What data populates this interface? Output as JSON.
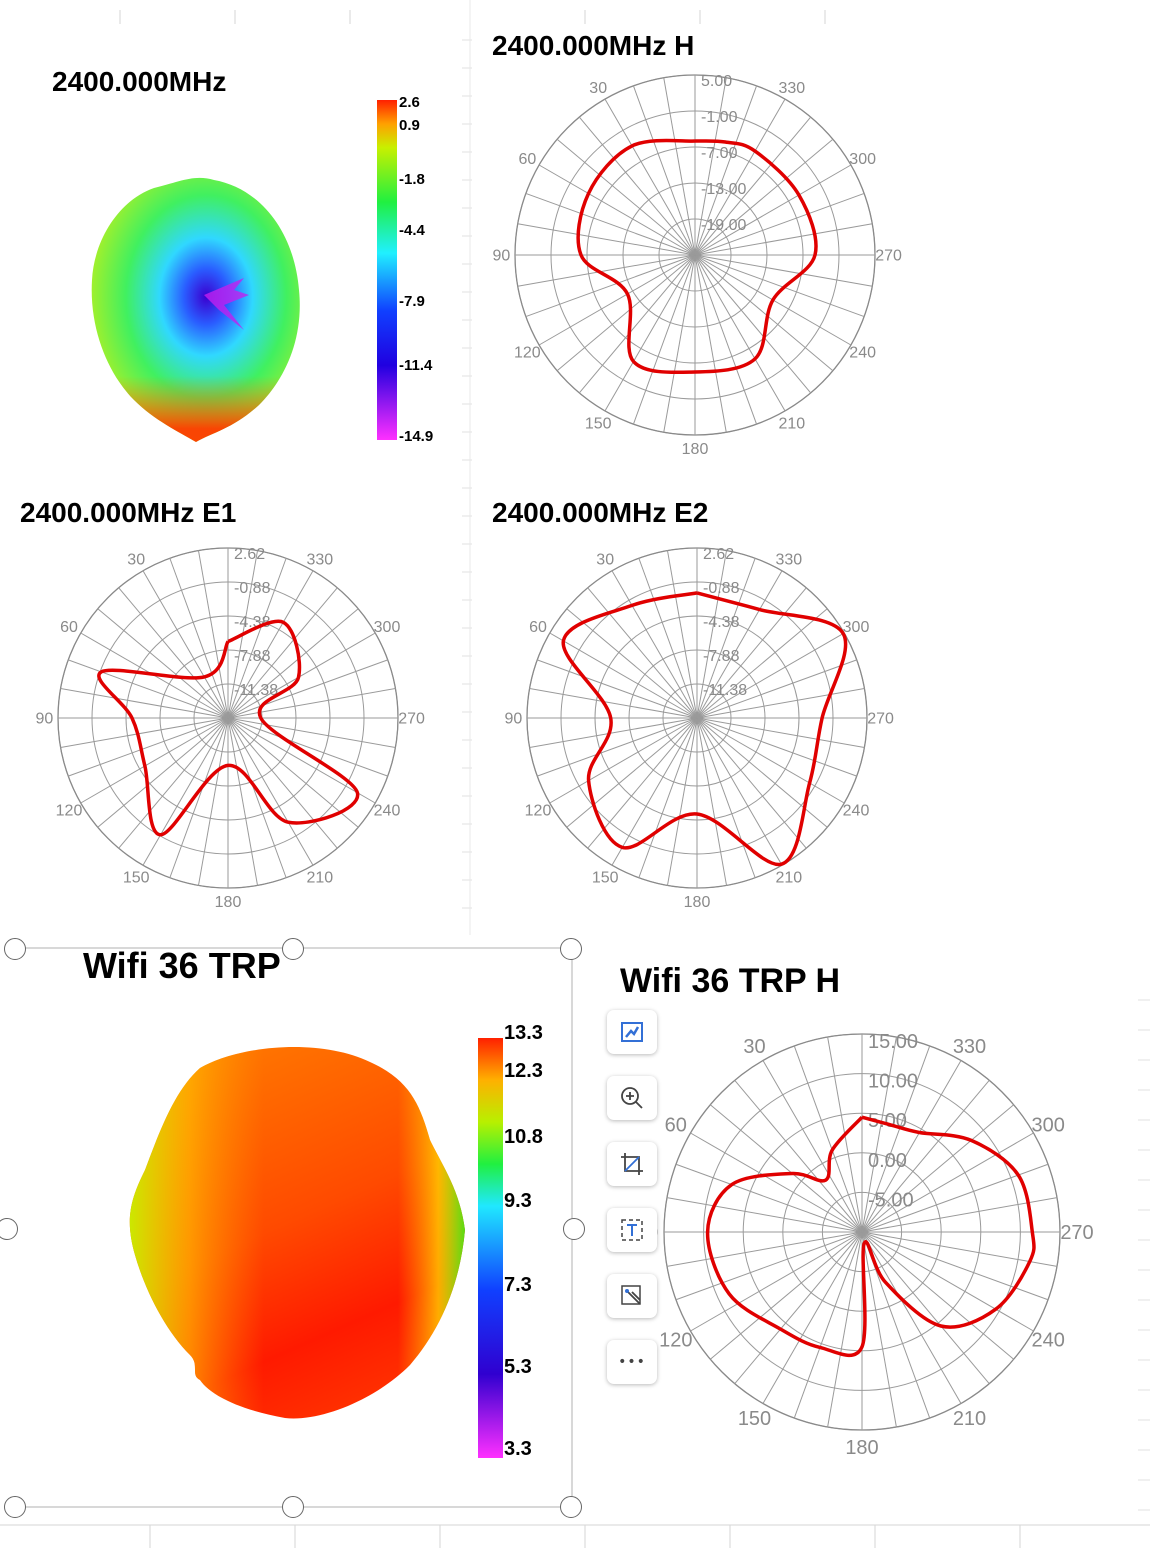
{
  "chart_data": [
    {
      "type": "3d-pattern",
      "title": "2400.000MHz",
      "colorbar": {
        "ticks": [
          "2.6",
          "0.9",
          "-1.8",
          "-4.4",
          "-7.9",
          "-11.4",
          "-14.9"
        ],
        "range": [
          -14.9,
          2.6
        ]
      }
    },
    {
      "type": "polar",
      "title": "2400.000MHz  H",
      "radial_ticks": [
        "5.00",
        "-1.00",
        "-7.00",
        "-13.00",
        "-19.00"
      ],
      "rlim": [
        -25,
        5
      ],
      "angle_ticks": [
        "330",
        "300",
        "270",
        "240",
        "210",
        "180",
        "150",
        "120",
        "90",
        "60",
        "30"
      ],
      "series": [
        {
          "color": "#e00000",
          "angles": [
            0,
            30,
            60,
            90,
            120,
            150,
            180,
            210,
            240,
            270,
            300,
            330,
            345,
            360
          ],
          "values": [
            -6.0,
            -4.0,
            -4.5,
            -6.0,
            -12.0,
            -4.5,
            -5.5,
            -5.0,
            -10.0,
            -5.0,
            -5.0,
            -5.0,
            -5.5,
            -6.0
          ]
        }
      ]
    },
    {
      "type": "polar",
      "title": "2400.000MHz  E1",
      "radial_ticks": [
        "2.62",
        "-0.88",
        "-4.38",
        "-7.88",
        "-11.38"
      ],
      "rlim": [
        -14.88,
        2.62
      ],
      "angle_ticks": [
        "330",
        "300",
        "270",
        "240",
        "210",
        "180",
        "150",
        "120",
        "90",
        "60",
        "30"
      ],
      "series": [
        {
          "color": "#e00000",
          "angles": [
            0,
            30,
            70,
            90,
            120,
            150,
            180,
            210,
            240,
            270,
            300,
            330,
            360
          ],
          "values": [
            -7.0,
            -10.0,
            -1.0,
            -5.0,
            -5.0,
            -1.0,
            -10.0,
            -2.5,
            0.5,
            -11.5,
            -6.5,
            -3.5,
            -7.0
          ]
        }
      ]
    },
    {
      "type": "polar",
      "title": "2400.000MHz  E2",
      "radial_ticks": [
        "2.62",
        "-0.88",
        "-4.38",
        "-7.88",
        "-11.38"
      ],
      "rlim": [
        -14.88,
        2.62
      ],
      "angle_ticks": [
        "330",
        "300",
        "270",
        "240",
        "210",
        "180",
        "150",
        "120",
        "90",
        "60",
        "30"
      ],
      "series": [
        {
          "color": "#e00000",
          "angles": [
            0,
            30,
            60,
            90,
            120,
            150,
            180,
            210,
            240,
            270,
            300,
            330,
            360
          ],
          "values": [
            -2.0,
            -1.5,
            1.0,
            -6.0,
            -2.0,
            0.5,
            -5.0,
            2.5,
            -1.5,
            -2.0,
            2.5,
            -2.0,
            -2.0
          ]
        }
      ]
    },
    {
      "type": "3d-pattern",
      "title": "Wifi 36 TRP",
      "colorbar": {
        "ticks": [
          "13.3",
          "12.3",
          "10.8",
          "9.3",
          "7.3",
          "5.3",
          "3.3"
        ],
        "range": [
          3.3,
          13.3
        ]
      }
    },
    {
      "type": "polar",
      "title": "Wifi 36 TRP H",
      "radial_ticks": [
        "15.00",
        "10.00",
        "5.00",
        "0.00",
        "-5.00"
      ],
      "rlim": [
        -10,
        15
      ],
      "angle_ticks": [
        "330",
        "300",
        "270",
        "240",
        "210",
        "180",
        "150",
        "120",
        "90",
        "60",
        "30"
      ],
      "series": [
        {
          "color": "#e00000",
          "angles": [
            0,
            20,
            35,
            50,
            70,
            90,
            115,
            140,
            160,
            180,
            190,
            205,
            220,
            240,
            260,
            270,
            290,
            310,
            330,
            345,
            360
          ],
          "values": [
            4.5,
            1.0,
            -2.0,
            1.5,
            7.5,
            9.5,
            8.5,
            6.0,
            5.5,
            4.5,
            -8.5,
            -3.0,
            5.5,
            9.5,
            11.5,
            11.5,
            11.0,
            8.0,
            4.5,
            4.0,
            4.5
          ]
        }
      ]
    }
  ],
  "toolbar": {
    "icons": [
      "chart-elements-icon",
      "zoom-in-icon",
      "crop-icon",
      "text-box-icon",
      "image-effects-icon",
      "more-icon"
    ],
    "more_label": "•••"
  }
}
